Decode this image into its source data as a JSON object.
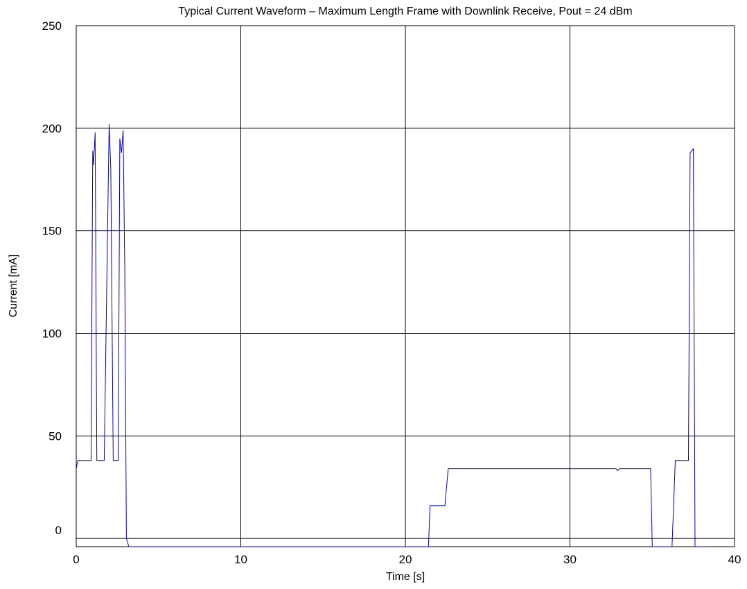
{
  "chart_data": {
    "type": "line",
    "title": "Typical Current Waveform – Maximum Length Frame with Downlink Receive, Pout = 24 dBm",
    "xlabel": "Time [s]",
    "ylabel": "Current [mA]",
    "xlim": [
      0,
      40
    ],
    "ylim": [
      -4,
      250
    ],
    "xticks": [
      0,
      10,
      20,
      30,
      40
    ],
    "yticks": [
      0,
      50,
      100,
      150,
      200,
      250
    ],
    "grid": true,
    "line_color": "#0000cc",
    "series": [
      {
        "x": [
          0,
          0.1,
          0.2,
          0.9,
          1.0,
          1.05,
          1.15,
          1.25,
          1.4,
          1.7,
          1.85,
          2.0,
          2.1,
          2.25,
          2.55,
          2.65,
          2.75,
          2.85,
          2.95,
          3.05,
          3.2,
          5,
          10,
          15,
          20,
          21.4,
          21.5,
          22.4,
          22.6,
          25,
          30,
          32.8,
          32.9,
          33.0,
          34.8,
          34.9,
          35.0,
          36.2,
          36.4,
          37.1,
          37.2,
          37.3,
          37.5,
          37.6,
          37.8,
          38.4
        ],
        "y": [
          34,
          38,
          38,
          38,
          189,
          182,
          198,
          38,
          38,
          38,
          120,
          202,
          180,
          38,
          38,
          195,
          188,
          199,
          130,
          0,
          -4,
          -4,
          -4,
          -4,
          -4,
          -4,
          16,
          16,
          34,
          34,
          34,
          34,
          33,
          34,
          34,
          34,
          -4,
          -4,
          38,
          38,
          38,
          188,
          190,
          -4,
          -4,
          -4
        ]
      }
    ]
  }
}
